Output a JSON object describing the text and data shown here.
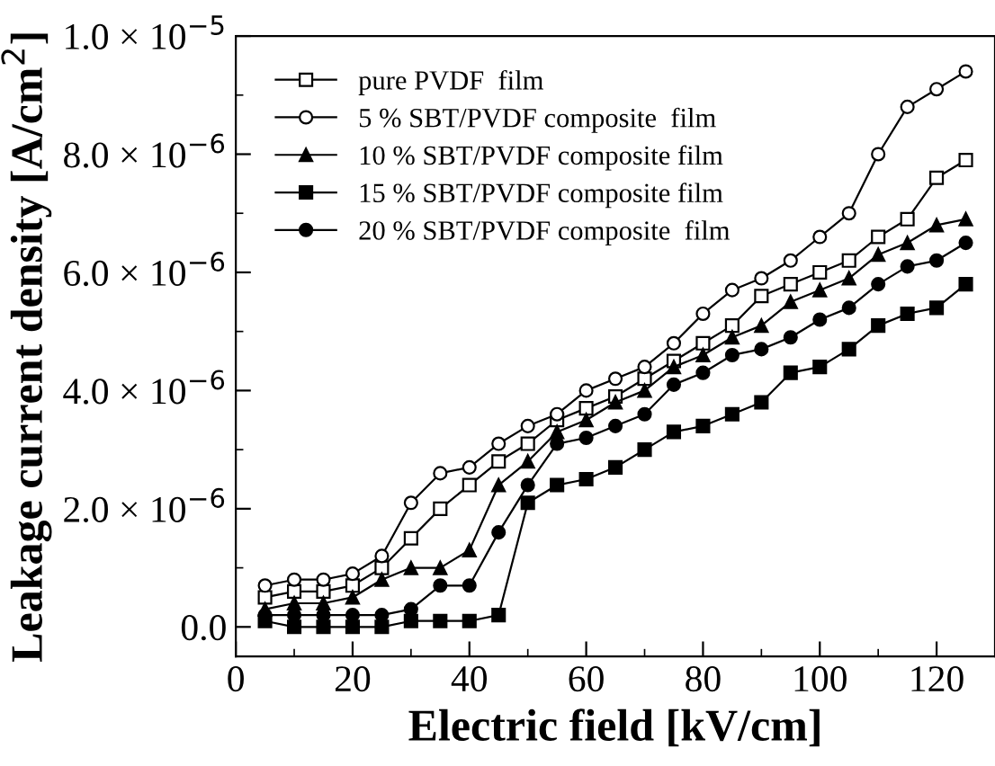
{
  "chart_data": {
    "type": "line",
    "xlabel": "Electric field [kV/cm]",
    "ylabel": "Leakage current density [A/cm$^{2}$]",
    "x": [
      5,
      10,
      15,
      20,
      25,
      30,
      35,
      40,
      45,
      50,
      55,
      60,
      65,
      70,
      75,
      80,
      85,
      90,
      95,
      100,
      105,
      110,
      115,
      120,
      125
    ],
    "series": [
      {
        "name": "pure PVDF  film",
        "color": "#000000",
        "marker": "square",
        "values": [
          5e-07,
          6e-07,
          6e-07,
          7e-07,
          1e-06,
          1.5e-06,
          2e-06,
          2.4e-06,
          2.8e-06,
          3.1e-06,
          3.5e-06,
          3.7e-06,
          3.9e-06,
          4.2e-06,
          4.5e-06,
          4.8e-06,
          5.1e-06,
          5.6e-06,
          5.8e-06,
          6e-06,
          6.2e-06,
          6.6e-06,
          6.9e-06,
          7.6e-06,
          7.9e-06
        ]
      },
      {
        "name": "5 % SBT/PVDF composite  film",
        "color": "#000000",
        "marker": "circle",
        "values": [
          7e-07,
          8e-07,
          8e-07,
          9e-07,
          1.2e-06,
          2.1e-06,
          2.6e-06,
          2.7e-06,
          3.1e-06,
          3.4e-06,
          3.6e-06,
          4e-06,
          4.2e-06,
          4.4e-06,
          4.8e-06,
          5.3e-06,
          5.7e-06,
          5.9e-06,
          6.2e-06,
          6.6e-06,
          7e-06,
          8e-06,
          8.8e-06,
          9.1e-06,
          9.4e-06
        ]
      },
      {
        "name": "10 % SBT/PVDF composite film",
        "color": "#000000",
        "marker": "triangle",
        "values": [
          3e-07,
          4e-07,
          4e-07,
          5e-07,
          8e-07,
          1e-06,
          1e-06,
          1.3e-06,
          2.4e-06,
          2.8e-06,
          3.3e-06,
          3.5e-06,
          3.8e-06,
          4e-06,
          4.4e-06,
          4.6e-06,
          4.9e-06,
          5.1e-06,
          5.5e-06,
          5.7e-06,
          5.9e-06,
          6.3e-06,
          6.5e-06,
          6.8e-06,
          6.9e-06
        ]
      },
      {
        "name": "15 % SBT/PVDF composite film",
        "color": "#000000",
        "marker": "square",
        "values": [
          1e-07,
          0,
          0,
          0,
          0,
          1e-07,
          1e-07,
          1e-07,
          2e-07,
          2.1e-06,
          2.4e-06,
          2.5e-06,
          2.7e-06,
          3e-06,
          3.3e-06,
          3.4e-06,
          3.6e-06,
          3.8e-06,
          4.3e-06,
          4.4e-06,
          4.7e-06,
          5.1e-06,
          5.3e-06,
          5.4e-06,
          5.8e-06
        ]
      },
      {
        "name": "20 % SBT/PVDF composite  film",
        "color": "#000000",
        "marker": "circle",
        "values": [
          2e-07,
          2e-07,
          2e-07,
          2e-07,
          2e-07,
          3e-07,
          7e-07,
          7e-07,
          1.6e-06,
          2.4e-06,
          3.1e-06,
          3.2e-06,
          3.4e-06,
          3.6e-06,
          4.1e-06,
          4.3e-06,
          4.6e-06,
          4.7e-06,
          4.9e-06,
          5.2e-06,
          5.4e-06,
          5.8e-06,
          6.1e-06,
          6.2e-06,
          6.5e-06
        ]
      }
    ],
    "xlim": [
      0,
      130
    ],
    "xticks": [
      0,
      20,
      40,
      60,
      80,
      100,
      120
    ],
    "ylim": [
      -5e-07,
      1e-05
    ],
    "yticks": [
      {
        "value": 0,
        "label": "0.0"
      },
      {
        "value": 2e-06,
        "label": "2.0 × 10$^{−6}$"
      },
      {
        "value": 4e-06,
        "label": "4.0 × 10$^{−6}$"
      },
      {
        "value": 6e-06,
        "label": "6.0 × 10$^{−6}$"
      },
      {
        "value": 8e-06,
        "label": "8.0 × 10$^{−6}$"
      },
      {
        "value": 1e-05,
        "label": "1.0 × 10$^{−5}$"
      }
    ],
    "legend": "top left",
    "grid": false,
    "line_style": "solid"
  }
}
